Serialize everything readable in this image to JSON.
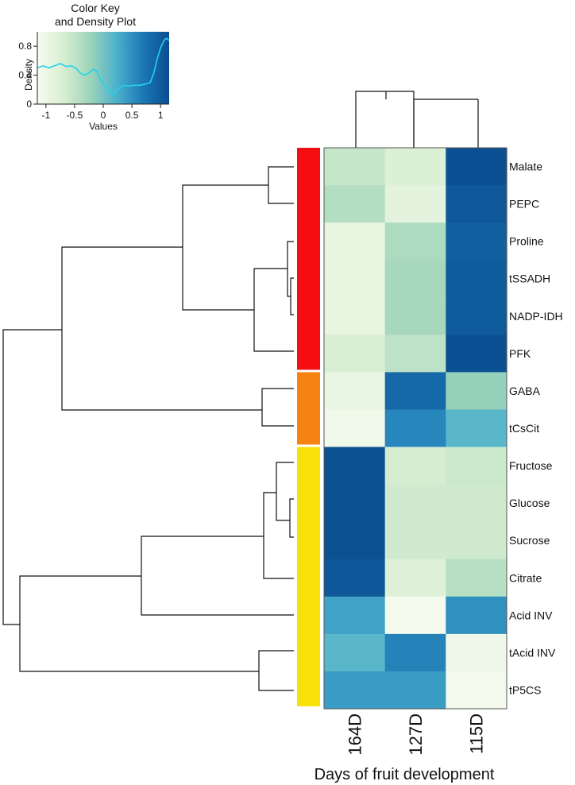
{
  "chart_data": {
    "type": "heatmap",
    "color_key": {
      "title_line1": "Color Key",
      "title_line2": "and Density Plot",
      "xlabel": "Values",
      "ylabel": "Density",
      "x_ticks": [
        "-1",
        "-0.5",
        "0",
        "0.5",
        "1"
      ],
      "x_tick_values": [
        -1,
        -0.5,
        0,
        0.5,
        1
      ],
      "y_ticks": [
        "0",
        "0.4",
        "0.8"
      ],
      "y_tick_values": [
        0,
        0.4,
        0.8
      ],
      "xlim": [
        -1.15,
        1.15
      ],
      "ylim": [
        0,
        1.0
      ],
      "density_color": "#22d3ee",
      "density_curve": [
        [
          -1.15,
          0.5
        ],
        [
          -1.05,
          0.53
        ],
        [
          -0.95,
          0.5
        ],
        [
          -0.85,
          0.53
        ],
        [
          -0.75,
          0.56
        ],
        [
          -0.65,
          0.52
        ],
        [
          -0.55,
          0.53
        ],
        [
          -0.47,
          0.49
        ],
        [
          -0.4,
          0.43
        ],
        [
          -0.33,
          0.4
        ],
        [
          -0.25,
          0.43
        ],
        [
          -0.18,
          0.48
        ],
        [
          -0.12,
          0.46
        ],
        [
          -0.06,
          0.36
        ],
        [
          0.02,
          0.26
        ],
        [
          0.1,
          0.18
        ],
        [
          0.16,
          0.13
        ],
        [
          0.22,
          0.17
        ],
        [
          0.3,
          0.24
        ],
        [
          0.38,
          0.26
        ],
        [
          0.46,
          0.25
        ],
        [
          0.55,
          0.26
        ],
        [
          0.65,
          0.26
        ],
        [
          0.75,
          0.28
        ],
        [
          0.82,
          0.3
        ],
        [
          0.88,
          0.42
        ],
        [
          0.94,
          0.62
        ],
        [
          1.0,
          0.78
        ],
        [
          1.06,
          0.88
        ],
        [
          1.1,
          0.91
        ],
        [
          1.15,
          0.88
        ]
      ],
      "gradient_stops": [
        "#f6fbef",
        "#d8eed2",
        "#9ed4b9",
        "#4cb1cc",
        "#1c78b6",
        "#0a4d8f"
      ]
    },
    "columns": [
      "164D",
      "127D",
      "115D"
    ],
    "rows": [
      "Malate",
      "PEPC",
      "Proline",
      "tSSADH",
      "NADP-IDH",
      "PFK",
      "GABA",
      "tCsCit",
      "Fructose",
      "Glucose",
      "Sucrose",
      "Citrate",
      "Acid INV",
      "tAcid INV",
      "tP5CS"
    ],
    "xlabel": "Days of fruit development",
    "vmin": -1.15,
    "vmax": 1.15,
    "values": [
      [
        -0.55,
        -0.75,
        1.12
      ],
      [
        -0.4,
        -0.88,
        1.02
      ],
      [
        -0.92,
        -0.35,
        0.95
      ],
      [
        -0.92,
        -0.3,
        1.0
      ],
      [
        -0.92,
        -0.3,
        1.0
      ],
      [
        -0.7,
        -0.48,
        1.12
      ],
      [
        -0.97,
        0.85,
        -0.18
      ],
      [
        -1.08,
        0.58,
        0.15
      ],
      [
        1.1,
        -0.68,
        -0.58
      ],
      [
        1.1,
        -0.62,
        -0.62
      ],
      [
        1.1,
        -0.62,
        -0.62
      ],
      [
        1.04,
        -0.78,
        -0.42
      ],
      [
        0.35,
        -1.12,
        0.5
      ],
      [
        0.15,
        0.6,
        -1.05
      ],
      [
        0.4,
        0.4,
        -1.1
      ]
    ],
    "row_groups": [
      {
        "color": "#f40d12",
        "rows": 6
      },
      {
        "color": "#f78412",
        "rows": 2
      },
      {
        "color": "#f8e10a",
        "rows": 7
      }
    ]
  }
}
